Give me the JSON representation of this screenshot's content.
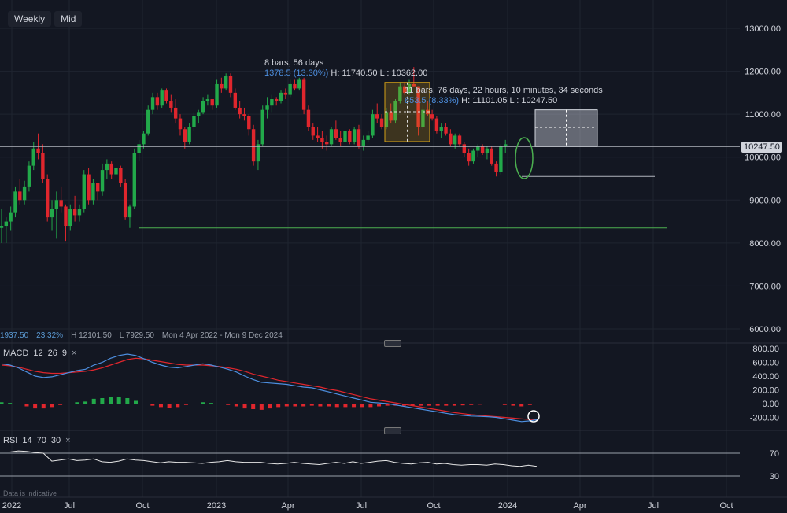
{
  "toolbar": {
    "timeframe": "Weekly",
    "price_source": "Mid"
  },
  "stats": {
    "change": "1937.50",
    "change_pct": "23.32%",
    "high": "H 12101.50",
    "low": "L 7929.50",
    "range": "Mon 4 Apr 2022 - Mon 9 Dec 2024"
  },
  "annotations": {
    "range1_line1": "8 bars, 56 days",
    "range1_change": "1378.5 (13.30%)",
    "range1_hl": "H: 11740.50 L : 10362.00",
    "range2_line1": "11 bars, 76 days, 22 hours, 10 minutes, 34 seconds",
    "range2_change": "853.5 (8.33%)",
    "range2_hl": "H: 11101.05 L : 10247.50"
  },
  "last_price": "10247.50",
  "macd": {
    "label": "MACD",
    "params": [
      "12",
      "26",
      "9"
    ],
    "close": "×"
  },
  "rsi": {
    "label": "RSI",
    "params": [
      "14",
      "70",
      "30"
    ],
    "close": "×"
  },
  "disclaimer": "Data is indicative",
  "colors": {
    "up": "#22a94a",
    "down": "#e0262d",
    "macd_line": "#4d8fe0",
    "signal_line": "#e0262d",
    "support": "#4caf50",
    "bg": "#131722"
  },
  "chart_data": [
    {
      "type": "candlestick",
      "title": "",
      "y_axis_ticks": [
        6000,
        7000,
        8000,
        9000,
        10000,
        11000,
        12000,
        13000
      ],
      "y_tick_labels": [
        "6000.00",
        "7000.00",
        "8000.00",
        "9000.00",
        "10000.00",
        "11000.00",
        "12000.00",
        "13000.00"
      ],
      "x_tick_labels": [
        "2022",
        "Jul",
        "Oct",
        "2023",
        "Apr",
        "Jul",
        "Oct",
        "2024",
        "Apr",
        "Jul",
        "Oct"
      ],
      "ylim": [
        5750,
        13300
      ],
      "candles": [
        [
          8350,
          8800,
          8000,
          8400
        ],
        [
          8400,
          8600,
          8000,
          8500
        ],
        [
          8500,
          8850,
          8300,
          8700
        ],
        [
          8700,
          9300,
          8600,
          9200
        ],
        [
          9200,
          9500,
          8900,
          9000
        ],
        [
          9000,
          9450,
          8900,
          9300
        ],
        [
          9300,
          9900,
          9200,
          9800
        ],
        [
          9800,
          10350,
          9700,
          10200
        ],
        [
          10200,
          10550,
          9950,
          10100
        ],
        [
          10100,
          10300,
          9400,
          9500
        ],
        [
          9500,
          9600,
          8500,
          8600
        ],
        [
          8600,
          9000,
          8300,
          8800
        ],
        [
          8800,
          9200,
          8100,
          9000
        ],
        [
          9000,
          9300,
          8700,
          8850
        ],
        [
          8850,
          8900,
          8050,
          8400
        ],
        [
          8400,
          8900,
          8300,
          8800
        ],
        [
          8800,
          9100,
          8500,
          8650
        ],
        [
          8650,
          8900,
          8500,
          8800
        ],
        [
          8800,
          9700,
          8700,
          9600
        ],
        [
          9600,
          9750,
          8900,
          9000
        ],
        [
          9000,
          9500,
          8900,
          9400
        ],
        [
          9400,
          9400,
          9000,
          9200
        ],
        [
          9200,
          9850,
          9100,
          9700
        ],
        [
          9700,
          9950,
          9500,
          9850
        ],
        [
          9850,
          9900,
          9500,
          9600
        ],
        [
          9600,
          9900,
          9500,
          9750
        ],
        [
          9750,
          9800,
          9300,
          9400
        ],
        [
          9400,
          9500,
          8550,
          8600
        ],
        [
          8600,
          8900,
          8350,
          8850
        ],
        [
          8850,
          10200,
          8800,
          10100
        ],
        [
          10100,
          10400,
          9900,
          10300
        ],
        [
          10300,
          10600,
          10200,
          10550
        ],
        [
          10550,
          11200,
          10500,
          11100
        ],
        [
          11100,
          11500,
          11000,
          11400
        ],
        [
          11400,
          11500,
          11100,
          11200
        ],
        [
          11200,
          11600,
          11150,
          11550
        ],
        [
          11550,
          11600,
          11250,
          11300
        ],
        [
          11300,
          11450,
          11050,
          11150
        ],
        [
          11150,
          11350,
          10800,
          10900
        ],
        [
          10900,
          11000,
          10500,
          10650
        ],
        [
          10650,
          10700,
          10200,
          10350
        ],
        [
          10350,
          10800,
          10300,
          10700
        ],
        [
          10700,
          11050,
          10600,
          10950
        ],
        [
          10950,
          11100,
          10800,
          11050
        ],
        [
          11050,
          11400,
          11000,
          11300
        ],
        [
          11300,
          11450,
          11200,
          11350
        ],
        [
          11350,
          11350,
          11100,
          11200
        ],
        [
          11200,
          11800,
          11150,
          11700
        ],
        [
          11700,
          11850,
          11500,
          11600
        ],
        [
          11600,
          11950,
          11550,
          11900
        ],
        [
          11900,
          11950,
          11400,
          11500
        ],
        [
          11500,
          11600,
          11100,
          11150
        ],
        [
          11150,
          11300,
          10900,
          11000
        ],
        [
          11000,
          11150,
          10850,
          10950
        ],
        [
          10950,
          11000,
          10500,
          10650
        ],
        [
          10650,
          10750,
          9800,
          9900
        ],
        [
          9900,
          10400,
          9700,
          10300
        ],
        [
          10300,
          11200,
          10250,
          11100
        ],
        [
          11100,
          11400,
          10900,
          11200
        ],
        [
          11200,
          11450,
          11050,
          11350
        ],
        [
          11350,
          11400,
          11200,
          11300
        ],
        [
          11300,
          11550,
          11250,
          11500
        ],
        [
          11500,
          11600,
          11350,
          11450
        ],
        [
          11450,
          11800,
          11400,
          11700
        ],
        [
          11700,
          11800,
          11550,
          11600
        ],
        [
          11600,
          11850,
          11550,
          11800
        ],
        [
          11800,
          11850,
          11000,
          11100
        ],
        [
          11100,
          11200,
          10600,
          10700
        ],
        [
          10700,
          10800,
          10400,
          10500
        ],
        [
          10500,
          10700,
          10350,
          10450
        ],
        [
          10450,
          10600,
          10200,
          10350
        ],
        [
          10350,
          10500,
          10150,
          10300
        ],
        [
          10300,
          10700,
          10250,
          10650
        ],
        [
          10650,
          10850,
          10400,
          10450
        ],
        [
          10450,
          10600,
          10250,
          10350
        ],
        [
          10350,
          10650,
          10300,
          10600
        ],
        [
          10600,
          10650,
          10300,
          10350
        ],
        [
          10350,
          10700,
          10300,
          10650
        ],
        [
          10650,
          10750,
          10200,
          10250
        ],
        [
          10250,
          10500,
          10150,
          10400
        ],
        [
          10400,
          10600,
          10350,
          10500
        ],
        [
          10500,
          11100,
          10450,
          11000
        ],
        [
          11000,
          11250,
          10800,
          10900
        ],
        [
          10900,
          11000,
          10650,
          10700
        ],
        [
          10700,
          11150,
          10650,
          11050
        ],
        [
          11050,
          11250,
          10800,
          10850
        ],
        [
          10850,
          11350,
          10800,
          11300
        ],
        [
          11300,
          11750,
          11250,
          11650
        ],
        [
          11650,
          11750,
          11450,
          11500
        ],
        [
          11500,
          11800,
          11450,
          11700
        ],
        [
          11700,
          12100,
          11650,
          11650
        ],
        [
          11650,
          11650,
          10500,
          10700
        ],
        [
          10700,
          11200,
          10650,
          11100
        ],
        [
          11100,
          11300,
          10950,
          11000
        ],
        [
          11000,
          11100,
          10850,
          10900
        ],
        [
          10900,
          10950,
          10550,
          10600
        ],
        [
          10600,
          10800,
          10450,
          10700
        ],
        [
          10700,
          10800,
          10500,
          10550
        ],
        [
          10550,
          10650,
          10250,
          10300
        ],
        [
          10300,
          10550,
          10200,
          10500
        ],
        [
          10500,
          10550,
          10250,
          10300
        ],
        [
          10300,
          10350,
          10000,
          10100
        ],
        [
          10100,
          10200,
          9800,
          9900
        ],
        [
          9900,
          10200,
          9850,
          10150
        ],
        [
          10150,
          10300,
          10000,
          10250
        ],
        [
          10250,
          10300,
          10050,
          10100
        ],
        [
          10100,
          10250,
          9950,
          10200
        ],
        [
          10200,
          10250,
          9800,
          9850
        ],
        [
          9850,
          9900,
          9550,
          9650
        ],
        [
          9650,
          10300,
          9600,
          10250
        ],
        [
          10250,
          10400,
          10100,
          10300
        ]
      ],
      "horizontal_levels": [
        {
          "value": 10247.5,
          "label": "last"
        },
        {
          "value": 9550,
          "label": "support"
        },
        {
          "value": 8350,
          "label": "support"
        }
      ],
      "ranges": [
        {
          "from_bar": 86,
          "to_bar": 93,
          "low": 10362.0,
          "high": 11740.5
        },
        {
          "from_bar": 117,
          "to_bar": 128,
          "low": 10247.5,
          "high": 11101.05
        }
      ]
    },
    {
      "type": "macd",
      "title": "MACD 12 26 9",
      "y_tick_labels": [
        "800.00",
        "600.00",
        "400.00",
        "200.00",
        "0.00",
        "-200.00"
      ],
      "ylim": [
        -300,
        850
      ],
      "macd": [
        580,
        560,
        520,
        460,
        400,
        380,
        390,
        420,
        450,
        480,
        500,
        560,
        600,
        660,
        700,
        720,
        700,
        650,
        600,
        560,
        530,
        520,
        540,
        560,
        580,
        560,
        530,
        500,
        460,
        400,
        350,
        310,
        300,
        290,
        280,
        260,
        240,
        230,
        200,
        170,
        140,
        110,
        80,
        50,
        20,
        10,
        0,
        -20,
        -40,
        -60,
        -80,
        -100,
        -120,
        -140,
        -160,
        -170,
        -180,
        -185,
        -190,
        -200,
        -220,
        -240,
        -260,
        -250,
        -230
      ],
      "signal": [
        560,
        550,
        530,
        500,
        470,
        450,
        440,
        440,
        450,
        460,
        470,
        490,
        520,
        560,
        600,
        640,
        660,
        650,
        630,
        610,
        590,
        570,
        560,
        560,
        560,
        550,
        540,
        520,
        500,
        470,
        430,
        400,
        370,
        340,
        320,
        300,
        280,
        260,
        240,
        210,
        190,
        160,
        130,
        100,
        70,
        50,
        30,
        10,
        -10,
        -30,
        -50,
        -70,
        -90,
        -110,
        -130,
        -145,
        -160,
        -170,
        -180,
        -190,
        -200,
        -210,
        -220,
        -230,
        -230
      ],
      "histogram": [
        20,
        10,
        -10,
        -40,
        -70,
        -70,
        -50,
        -20,
        0,
        20,
        30,
        70,
        80,
        100,
        100,
        80,
        40,
        0,
        -30,
        -50,
        -60,
        -50,
        -20,
        0,
        20,
        10,
        -10,
        -20,
        -40,
        -70,
        -80,
        -90,
        -70,
        -50,
        -40,
        -40,
        -40,
        -30,
        -40,
        -40,
        -50,
        -50,
        -50,
        -50,
        -50,
        -40,
        -30,
        -30,
        -30,
        -30,
        -30,
        -30,
        -30,
        -30,
        -30,
        -25,
        -20,
        -15,
        -10,
        -10,
        -20,
        -30,
        -40,
        -20,
        0
      ]
    },
    {
      "type": "rsi",
      "title": "RSI 14 70 30",
      "y_tick_labels": [
        "70",
        "30"
      ],
      "ylim": [
        20,
        75
      ],
      "values": [
        72,
        72,
        74,
        73,
        71,
        70,
        56,
        58,
        60,
        57,
        58,
        60,
        55,
        54,
        56,
        60,
        58,
        57,
        55,
        53,
        55,
        54,
        54,
        53,
        52,
        54,
        55,
        57,
        55,
        54,
        54,
        54,
        52,
        51,
        52,
        54,
        52,
        51,
        50,
        52,
        54,
        52,
        55,
        52,
        54,
        56,
        57,
        54,
        52,
        51,
        53,
        54,
        51,
        52,
        50,
        49,
        50,
        50,
        49,
        51,
        50,
        48,
        47,
        49,
        47
      ]
    }
  ]
}
